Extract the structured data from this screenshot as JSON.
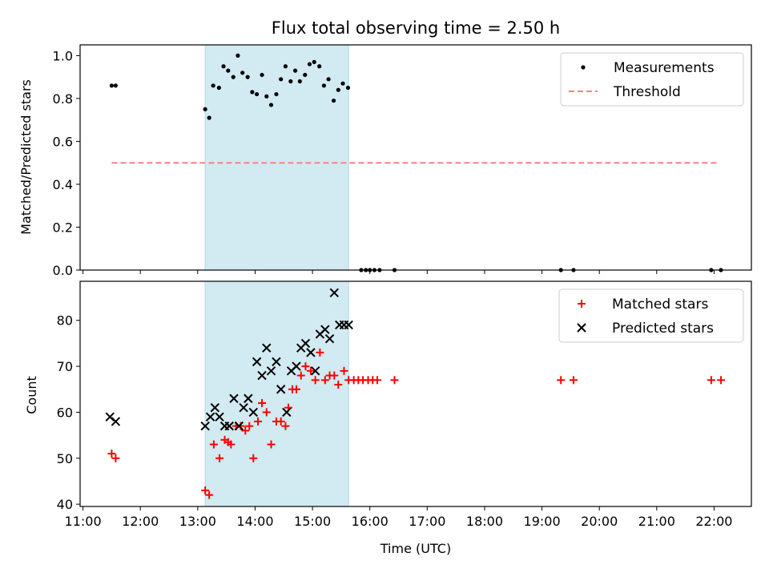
{
  "title": "Flux total observing time = 2.50 h",
  "colors": {
    "measurements": "#000000",
    "threshold": "#ff7f7f",
    "matched": "#ff0000",
    "predicted": "#000000",
    "highlight": "#add8e6"
  },
  "chart_data": [
    {
      "type": "scatter",
      "ylabel": "Matched/Predicted stars",
      "xlabel": "",
      "xlim": [
        10.95,
        22.65
      ],
      "ylim": [
        0,
        1.05
      ],
      "yticks": [
        0.0,
        0.2,
        0.4,
        0.6,
        0.8,
        1.0
      ],
      "ytick_labels": [
        "0.0",
        "0.2",
        "0.4",
        "0.6",
        "0.8",
        "1.0"
      ],
      "highlight_span": [
        13.13,
        15.63
      ],
      "legend_position": "top-right",
      "legend": [
        "Measurements",
        "Threshold"
      ],
      "threshold": {
        "name": "Threshold",
        "y": 0.5,
        "x_range": [
          11.5,
          22.05
        ]
      },
      "series": [
        {
          "name": "Measurements",
          "x": [
            11.5,
            11.57,
            13.13,
            13.2,
            13.27,
            13.37,
            13.45,
            13.53,
            13.62,
            13.7,
            13.78,
            13.87,
            13.95,
            14.03,
            14.12,
            14.2,
            14.28,
            14.37,
            14.45,
            14.53,
            14.62,
            14.7,
            14.78,
            14.87,
            14.95,
            15.03,
            15.12,
            15.2,
            15.28,
            15.37,
            15.45,
            15.53,
            15.62,
            15.85,
            15.93,
            16.0,
            16.08,
            16.17,
            16.43,
            19.33,
            19.55,
            21.95,
            22.12
          ],
          "y": [
            0.86,
            0.86,
            0.75,
            0.71,
            0.86,
            0.85,
            0.95,
            0.93,
            0.9,
            1.0,
            0.92,
            0.9,
            0.83,
            0.82,
            0.91,
            0.81,
            0.77,
            0.82,
            0.89,
            0.95,
            0.88,
            0.93,
            0.88,
            0.91,
            0.96,
            0.97,
            0.95,
            0.86,
            0.89,
            0.79,
            0.84,
            0.87,
            0.85,
            0.0,
            0.0,
            0.0,
            0.0,
            0.0,
            0.0,
            0.0,
            0.0,
            0.0,
            0.0
          ]
        }
      ]
    },
    {
      "type": "scatter",
      "ylabel": "Count",
      "xlabel": "Time (UTC)",
      "xlim": [
        10.95,
        22.65
      ],
      "ylim": [
        39.5,
        88.5
      ],
      "yticks": [
        40,
        50,
        60,
        70,
        80
      ],
      "ytick_labels": [
        "40",
        "50",
        "60",
        "70",
        "80"
      ],
      "xticks": [
        11,
        12,
        13,
        14,
        15,
        16,
        17,
        18,
        19,
        20,
        21,
        22
      ],
      "xtick_labels": [
        "11:00",
        "12:00",
        "13:00",
        "14:00",
        "15:00",
        "16:00",
        "17:00",
        "18:00",
        "19:00",
        "20:00",
        "21:00",
        "22:00"
      ],
      "highlight_span": [
        13.13,
        15.63
      ],
      "legend_position": "top-right",
      "legend": [
        "Matched stars",
        "Predicted stars"
      ],
      "series": [
        {
          "name": "Matched stars",
          "marker": "plus",
          "x": [
            11.5,
            11.57,
            13.13,
            13.2,
            13.28,
            13.38,
            13.47,
            13.53,
            13.58,
            13.67,
            13.75,
            13.83,
            13.9,
            13.97,
            14.05,
            14.12,
            14.2,
            14.28,
            14.37,
            14.45,
            14.53,
            14.58,
            14.65,
            14.72,
            14.8,
            14.88,
            14.97,
            15.05,
            15.13,
            15.22,
            15.3,
            15.38,
            15.45,
            15.55,
            15.63,
            15.72,
            15.8,
            15.88,
            15.97,
            16.05,
            16.13,
            16.43,
            19.33,
            19.55,
            21.95,
            22.12
          ],
          "y": [
            51,
            50,
            43,
            42,
            53,
            50,
            54,
            53.5,
            53,
            57,
            57,
            56,
            57,
            50,
            58,
            62,
            60,
            53,
            58,
            58,
            57,
            61,
            65,
            65,
            68,
            70,
            69,
            67,
            73,
            67,
            68,
            68,
            66,
            69,
            67,
            67,
            67,
            67,
            67,
            67,
            67,
            67,
            67,
            67,
            67,
            67
          ]
        },
        {
          "name": "Predicted stars",
          "marker": "x",
          "x": [
            11.47,
            11.57,
            13.13,
            13.22,
            13.3,
            13.38,
            13.47,
            13.55,
            13.63,
            13.72,
            13.8,
            13.88,
            13.97,
            14.03,
            14.12,
            14.2,
            14.28,
            14.37,
            14.45,
            14.55,
            14.63,
            14.72,
            14.8,
            14.88,
            14.97,
            15.05,
            15.13,
            15.22,
            15.3,
            15.38,
            15.47,
            15.55,
            15.63
          ],
          "y": [
            59,
            58,
            57,
            59,
            61,
            59,
            57,
            57,
            63,
            57,
            61,
            63,
            60,
            71,
            68,
            74,
            69,
            71,
            65,
            60,
            69,
            70,
            74,
            75,
            73,
            69,
            77,
            78,
            76,
            86,
            79,
            79,
            79
          ]
        }
      ]
    }
  ]
}
